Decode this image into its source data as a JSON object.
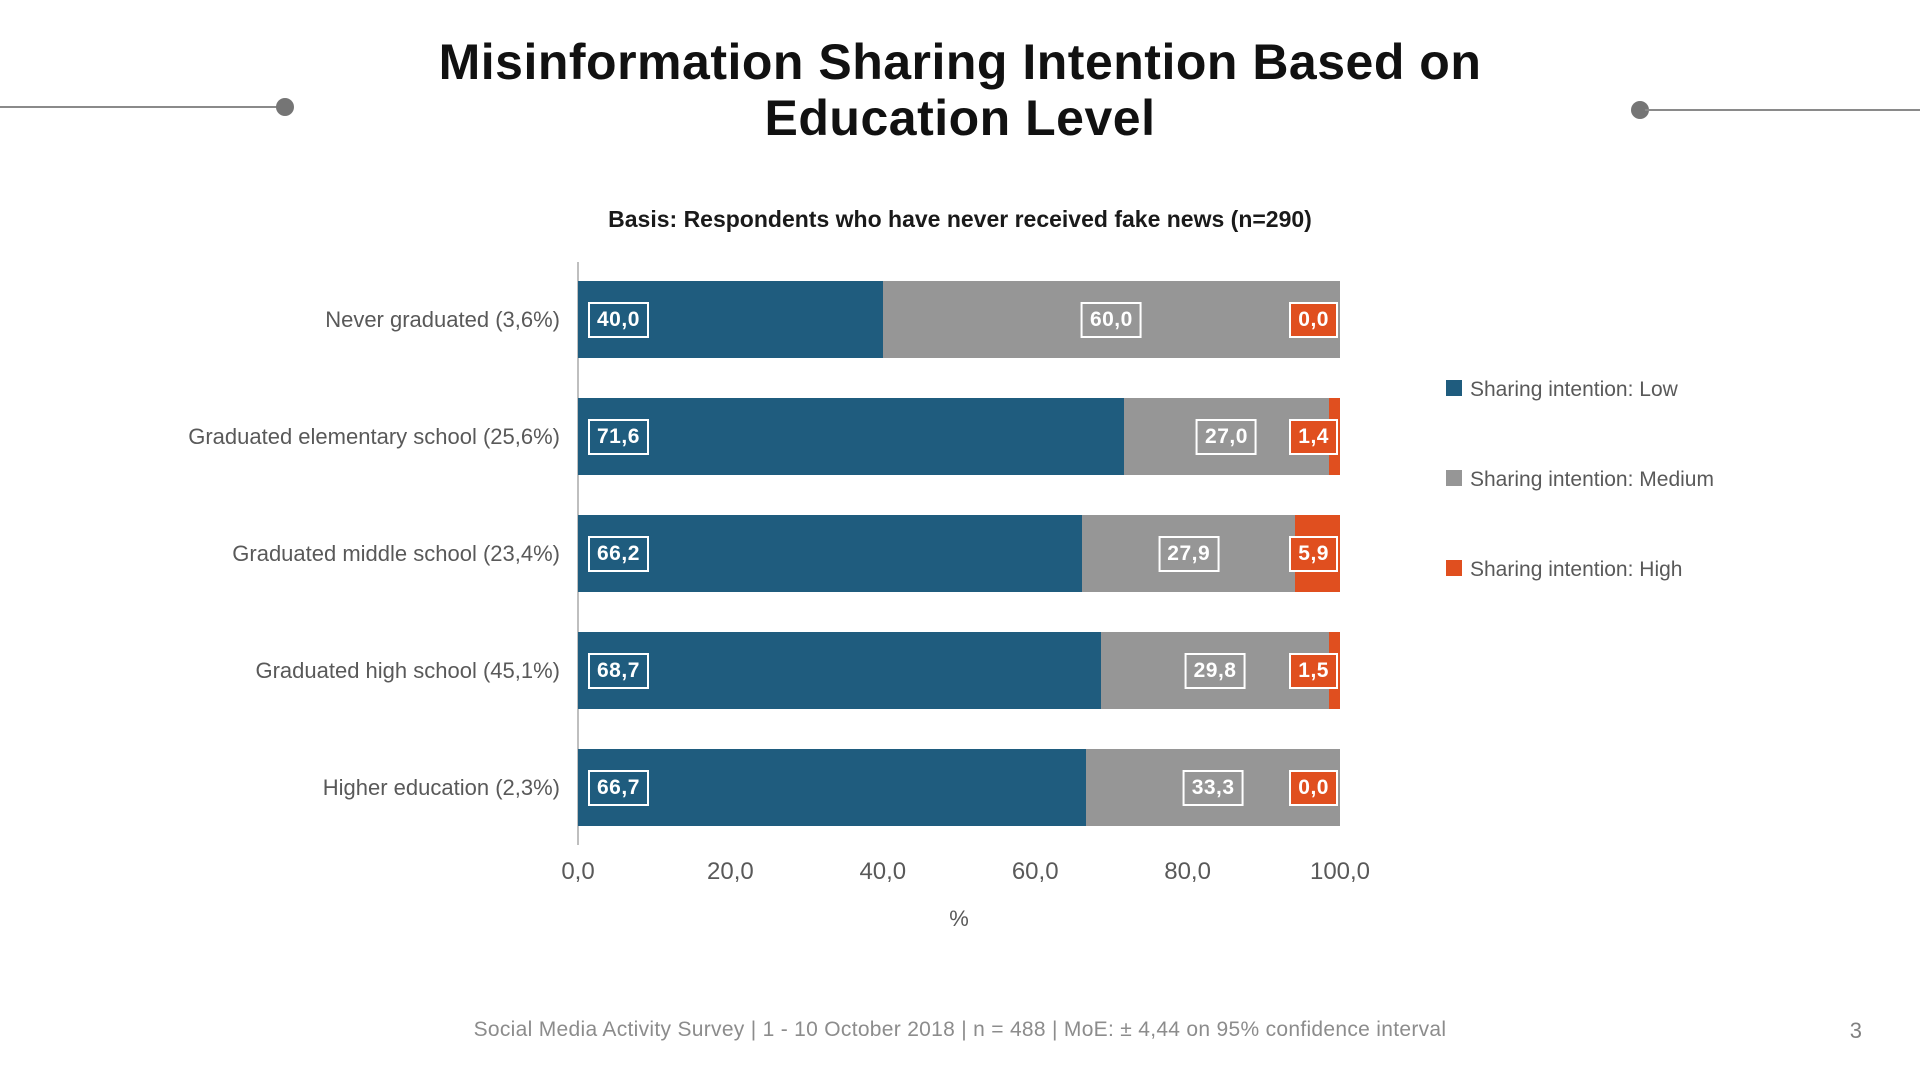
{
  "slide": {
    "title_line1": "Misinformation Sharing Intention Based on",
    "title_line2": "Education Level",
    "footer": "Social Media Activity Survey | 1 - 10 October 2018 | n = 488 | MoE: ± 4,44 on 95% confidence interval",
    "page_number": "3"
  },
  "chart_data": {
    "type": "bar",
    "orientation": "horizontal",
    "stacked": true,
    "subtitle": "Basis: Respondents who have never received fake news (n=290)",
    "categories": [
      "Never graduated (3,6%)",
      "Graduated elementary school (25,6%)",
      "Graduated middle school (23,4%)",
      "Graduated high school (45,1%)",
      "Higher education (2,3%)"
    ],
    "series": [
      {
        "name": "Sharing intention: Low",
        "color": "#1f5c7e",
        "values": [
          40.0,
          71.6,
          66.2,
          68.7,
          66.7
        ],
        "labels": [
          "40,0",
          "71,6",
          "66,2",
          "68,7",
          "66,7"
        ]
      },
      {
        "name": "Sharing intention: Medium",
        "color": "#969696",
        "values": [
          60.0,
          27.0,
          27.9,
          29.8,
          33.3
        ],
        "labels": [
          "60,0",
          "27,0",
          "27,9",
          "29,8",
          "33,3"
        ]
      },
      {
        "name": "Sharing intention: High",
        "color": "#e04f1f",
        "values": [
          0.0,
          1.4,
          5.9,
          1.5,
          0.0
        ],
        "labels": [
          "0,0",
          "1,4",
          "5,9",
          "1,5",
          "0,0"
        ]
      }
    ],
    "x_ticks": [
      "0,0",
      "20,0",
      "40,0",
      "60,0",
      "80,0",
      "100,0"
    ],
    "xlabel": "%",
    "xlim": [
      0,
      100
    ],
    "grid": false,
    "legend_position": "right"
  }
}
